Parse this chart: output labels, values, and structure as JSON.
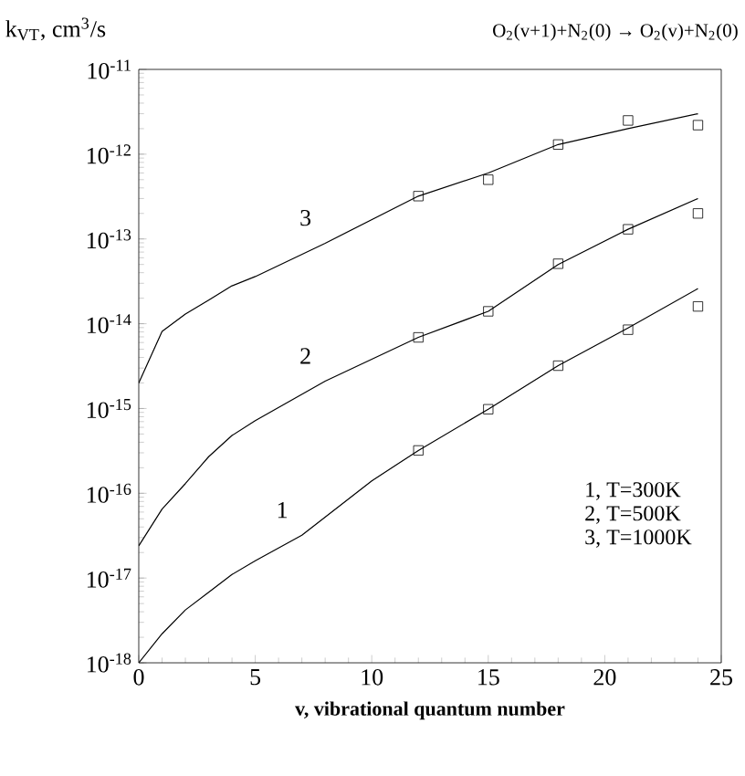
{
  "chart_data": {
    "type": "line",
    "title": "O$_{2}$(v+1)+N$_{2}$(0) → O$_{2}$(v)+N$_{2}$(0)",
    "ylabel": "k$_{VT}$, cm$^{3}$/s",
    "xlabel": "v, vibrational quantum number",
    "log": "y",
    "xlim": [
      0,
      25
    ],
    "xticks": [
      0,
      5,
      10,
      15,
      20,
      25
    ],
    "ylim": [
      1e-18,
      1e-11
    ],
    "yticks": [
      {
        "value": 1e-18,
        "label": "10$^{-18}$"
      },
      {
        "value": 1e-17,
        "label": "10$^{-17}$"
      },
      {
        "value": 1e-16,
        "label": "10$^{-16}$"
      },
      {
        "value": 1e-15,
        "label": "10$^{-15}$"
      },
      {
        "value": 1e-14,
        "label": "10$^{-14}$"
      },
      {
        "value": 1e-13,
        "label": "10$^{-13}$"
      },
      {
        "value": 1e-12,
        "label": "10$^{-12}$"
      },
      {
        "value": 1e-11,
        "label": "10$^{-11}$"
      }
    ],
    "series": [
      {
        "name": "1",
        "color": "#000000",
        "marker": "none",
        "x": [
          0,
          1,
          2,
          3,
          4,
          5,
          7,
          10,
          12,
          15,
          18,
          21,
          24
        ],
        "values": [
          1e-18,
          2.2e-18,
          4.2e-18,
          6.8e-18,
          1.1e-17,
          1.6e-17,
          3.2e-17,
          1.4e-16,
          3.2e-16,
          9.8e-16,
          3.2e-15,
          8.9e-15,
          2.6e-14
        ]
      },
      {
        "name": "2",
        "color": "#000000",
        "marker": "none",
        "x": [
          0,
          1,
          2,
          3,
          4,
          5,
          8,
          12,
          15,
          18,
          21,
          24
        ],
        "values": [
          2.4e-17,
          6.5e-17,
          1.3e-16,
          2.7e-16,
          4.8e-16,
          7.2e-16,
          2.1e-15,
          6.9e-15,
          1.4e-14,
          5e-14,
          1.3e-13,
          3e-13
        ]
      },
      {
        "name": "3",
        "color": "#000000",
        "marker": "none",
        "x": [
          0,
          1,
          2,
          3,
          4,
          5,
          8,
          12,
          15,
          18,
          21,
          24
        ],
        "values": [
          2e-15,
          8.1e-15,
          1.3e-14,
          1.9e-14,
          2.8e-14,
          3.6e-14,
          8.9e-14,
          3.2e-13,
          6e-13,
          1.3e-12,
          2e-12,
          3e-12
        ]
      },
      {
        "type": "scatter",
        "color": "#000000",
        "marker": "square",
        "x": [
          12,
          15,
          18,
          21,
          24
        ],
        "values": [
          3.2e-16,
          9.8e-16,
          3.2e-15,
          8.5e-15,
          1.6e-14
        ]
      },
      {
        "type": "scatter",
        "color": "#000000",
        "marker": "square",
        "x": [
          12,
          15,
          18,
          21,
          24
        ],
        "values": [
          6.9e-15,
          1.4e-14,
          5.1e-14,
          1.3e-13,
          2e-13
        ]
      },
      {
        "type": "scatter",
        "color": "#000000",
        "marker": "square",
        "x": [
          12,
          15,
          18,
          21,
          24
        ],
        "values": [
          3.2e-13,
          5e-13,
          1.3e-12,
          2.5e-12,
          2.2e-12
        ]
      }
    ],
    "annotations": [
      "1, T=300K",
      "2, T=500K",
      "3, T=1000K"
    ]
  }
}
